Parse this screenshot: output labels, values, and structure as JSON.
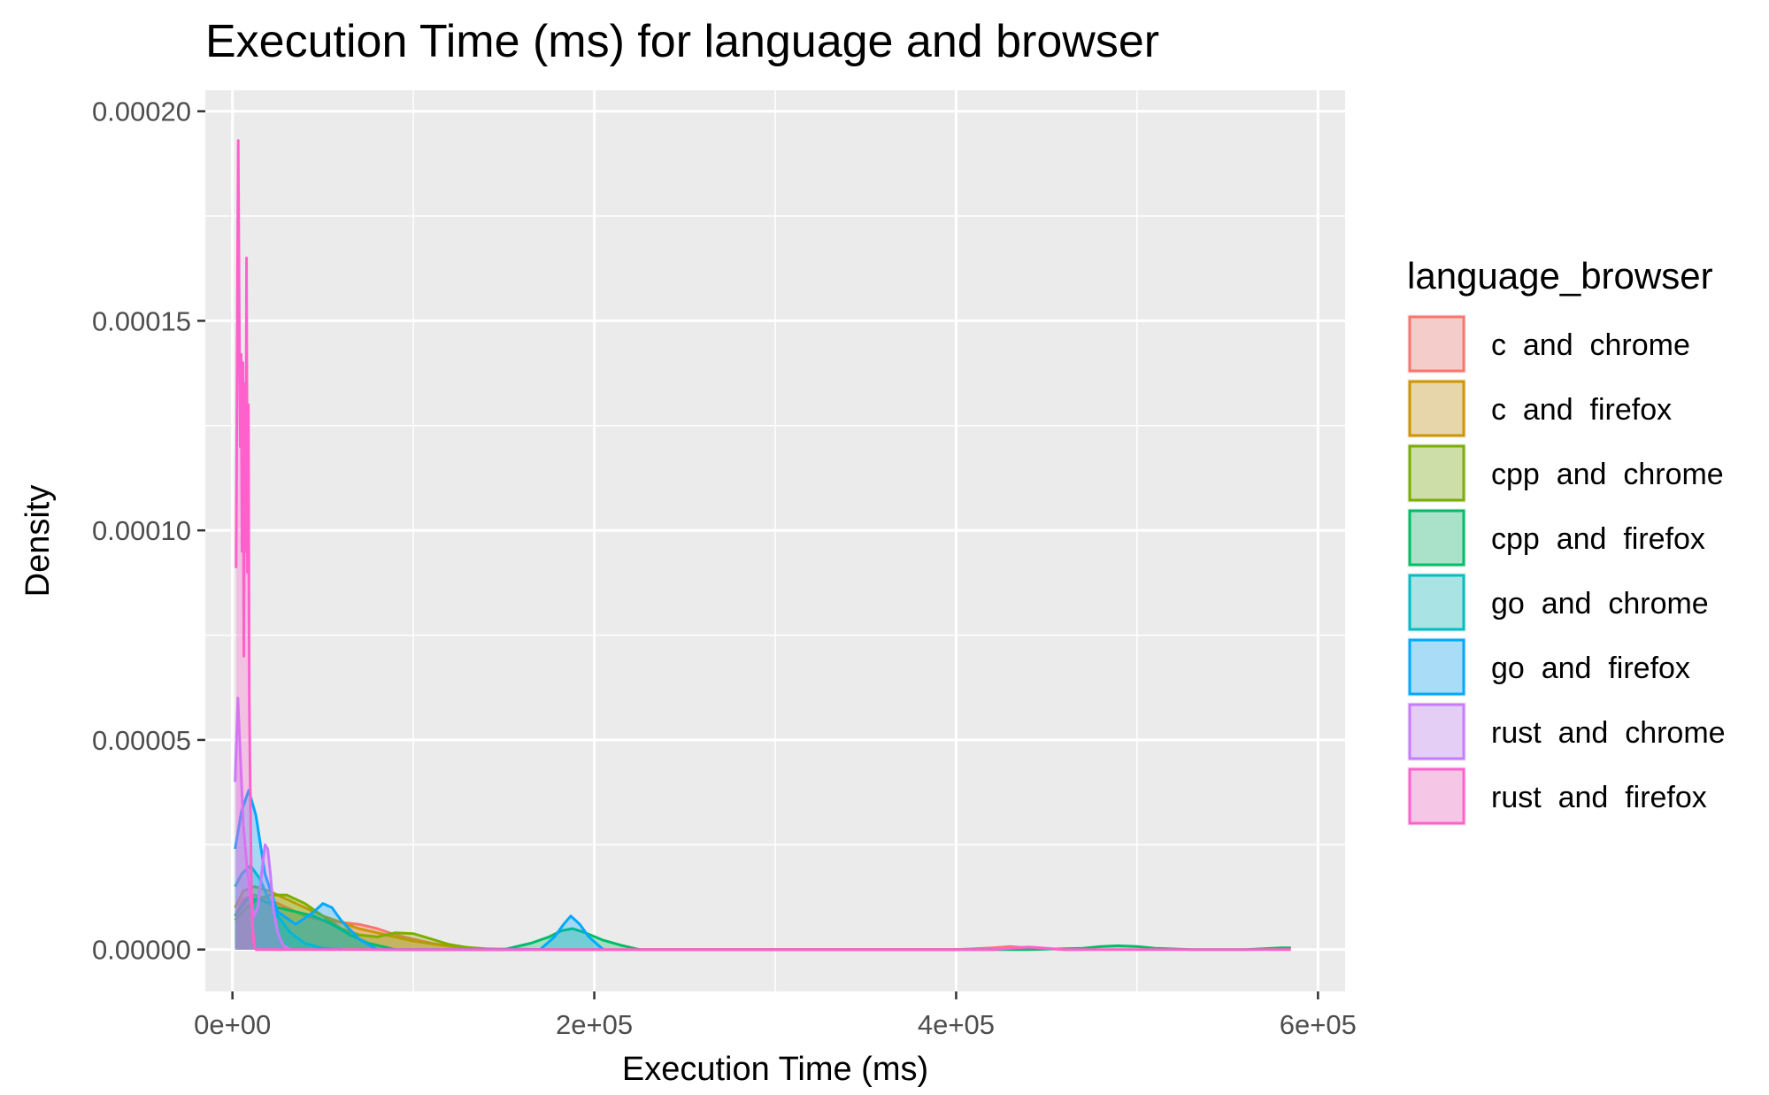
{
  "chart_data": {
    "type": "area",
    "title": "Execution Time (ms) for language and browser",
    "xlabel": "Execution Time (ms)",
    "ylabel": "Density",
    "xlim": [
      -15000,
      615000
    ],
    "ylim": [
      -1e-05,
      0.000205
    ],
    "x_ticks": [
      0,
      200000,
      400000,
      600000
    ],
    "x_tick_labels": [
      "0e+00",
      "2e+05",
      "4e+05",
      "6e+05"
    ],
    "y_ticks": [
      0,
      5e-05,
      0.0001,
      0.00015,
      0.0002
    ],
    "y_tick_labels": [
      "0.00000",
      "0.00005",
      "0.00010",
      "0.00015",
      "0.00020"
    ],
    "grid": true,
    "legend_position": "right",
    "legend_title": "language_browser",
    "series": [
      {
        "name": "c  and  chrome",
        "color": "#F8766D",
        "x": [
          1500,
          6000,
          12000,
          20000,
          30000,
          40000,
          50000,
          60000,
          70000,
          80000,
          90000,
          100000,
          110000,
          120000,
          130000,
          180000,
          400000,
          420000,
          430000,
          440000,
          460000,
          470000
        ],
        "y": [
          8e-06,
          1.2e-05,
          1.3e-05,
          1.2e-05,
          1e-05,
          8e-06,
          7e-06,
          6.5e-06,
          6e-06,
          5e-06,
          3.5e-06,
          2.5e-06,
          1.5e-06,
          8e-07,
          2e-07,
          0,
          0,
          4e-07,
          7e-07,
          4e-07,
          0,
          0
        ]
      },
      {
        "name": "c  and  firefox",
        "color": "#CD9600",
        "x": [
          1500,
          6000,
          12000,
          20000,
          30000,
          40000,
          50000,
          60000,
          70000,
          80000,
          90000,
          100000,
          120000,
          140000,
          160000
        ],
        "y": [
          1e-05,
          1.4e-05,
          1.5e-05,
          1.4e-05,
          1.2e-05,
          1e-05,
          8e-06,
          6.5e-06,
          5e-06,
          4e-06,
          3e-06,
          2e-06,
          8e-07,
          2e-07,
          0
        ]
      },
      {
        "name": "cpp  and  chrome",
        "color": "#7CAE00",
        "x": [
          1500,
          10000,
          20000,
          30000,
          40000,
          50000,
          60000,
          70000,
          80000,
          90000,
          100000,
          110000,
          120000,
          130000,
          140000,
          150000
        ],
        "y": [
          7e-06,
          1.1e-05,
          1.3e-05,
          1.3e-05,
          1.1e-05,
          8e-06,
          5e-06,
          3.5e-06,
          3e-06,
          4e-06,
          3.8e-06,
          2.5e-06,
          1.2e-06,
          5e-07,
          1e-07,
          0
        ]
      },
      {
        "name": "cpp  and  firefox",
        "color": "#00BE67",
        "x": [
          1500,
          8000,
          15000,
          25000,
          35000,
          45000,
          55000,
          65000,
          75000,
          90000,
          150000,
          165000,
          175000,
          182000,
          188000,
          195000,
          205000,
          215000,
          225000,
          440000,
          470000,
          480000,
          490000,
          500000,
          510000,
          530000,
          560000,
          580000,
          585000
        ],
        "y": [
          8e-06,
          1.2e-05,
          1.2e-05,
          1e-05,
          9e-06,
          8e-06,
          6e-06,
          3.5e-06,
          1.5e-06,
          0,
          0,
          1.5e-06,
          3e-06,
          4.5e-06,
          5e-06,
          4e-06,
          2.2e-06,
          1e-06,
          0,
          0,
          3e-07,
          7e-07,
          9e-07,
          7e-07,
          3e-07,
          0,
          0,
          4e-07,
          4e-07
        ]
      },
      {
        "name": "go  and  chrome",
        "color": "#00BFC4",
        "x": [
          1500,
          5000,
          10000,
          15000,
          20000,
          25000,
          32000,
          40000,
          50000,
          60000
        ],
        "y": [
          1.5e-05,
          1.8e-05,
          2e-05,
          1.7e-05,
          1.2e-05,
          8e-06,
          4e-06,
          1.5e-06,
          3e-07,
          0
        ]
      },
      {
        "name": "go  and  firefox",
        "color": "#00A9FF",
        "x": [
          1500,
          5000,
          9000,
          13000,
          18000,
          25000,
          35000,
          45000,
          50000,
          55000,
          60000,
          70000,
          80000,
          170000,
          178000,
          183000,
          187000,
          192000,
          197000,
          205000
        ],
        "y": [
          2.4e-05,
          3.3e-05,
          3.8e-05,
          3.2e-05,
          1.8e-05,
          9e-06,
          6e-06,
          9e-06,
          1.1e-05,
          1e-05,
          7e-06,
          2.5e-06,
          0,
          0,
          3e-06,
          6e-06,
          8e-06,
          6e-06,
          3e-06,
          0
        ]
      },
      {
        "name": "rust  and  chrome",
        "color": "#C77CFF",
        "x": [
          1500,
          3000,
          4500,
          6000,
          8000,
          10000,
          12000,
          14000,
          16000,
          18000,
          19500,
          21000,
          22500,
          25000,
          28000,
          32000
        ],
        "y": [
          4e-05,
          6e-05,
          4.5e-05,
          3e-05,
          2e-05,
          1.2e-05,
          8e-06,
          1e-05,
          1.8e-05,
          2.5e-05,
          2.4e-05,
          1.8e-05,
          1e-05,
          4e-06,
          1e-06,
          0
        ]
      },
      {
        "name": "rust  and  firefox",
        "color": "#FF61CC",
        "x": [
          2000,
          2600,
          3200,
          3800,
          4300,
          4800,
          5300,
          5800,
          6300,
          6800,
          7300,
          7800,
          8300,
          8800,
          9300,
          9800,
          10500,
          11200,
          12000,
          13000,
          15000,
          20000,
          100000,
          300000,
          420000,
          430000,
          440000,
          450000,
          460000,
          500000,
          585000
        ],
        "y": [
          9.1e-05,
          0.000145,
          0.000193,
          0.00015,
          0.00012,
          0.000142,
          9.5e-05,
          0.00014,
          7e-05,
          0.000135,
          9.5e-05,
          0.000165,
          9e-05,
          0.00013,
          6e-05,
          4e-05,
          1.5e-05,
          5e-06,
          1e-06,
          0,
          0,
          0,
          0,
          0,
          0,
          3e-07,
          6e-07,
          3e-07,
          0,
          0,
          0
        ]
      }
    ]
  }
}
